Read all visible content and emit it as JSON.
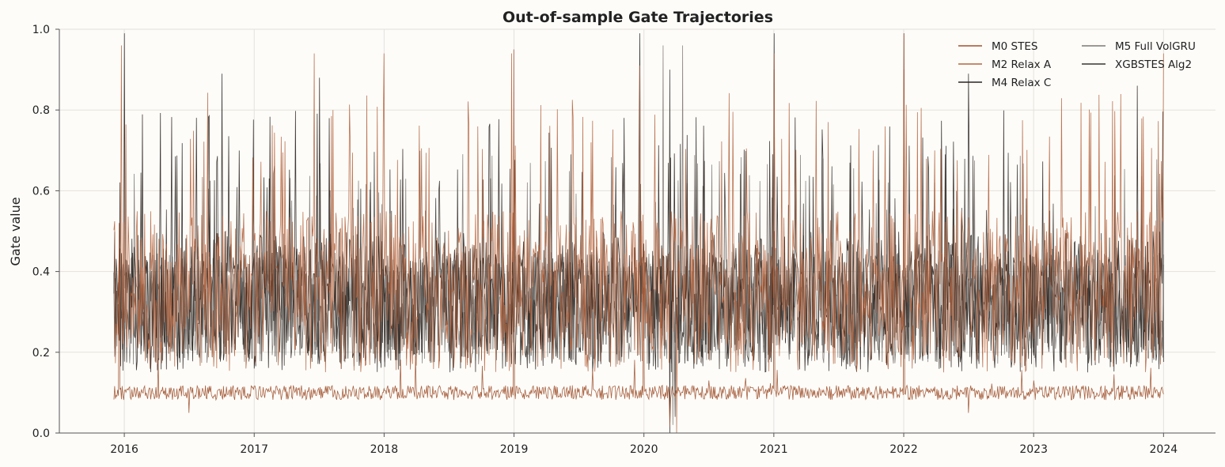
{
  "chart_data": {
    "type": "line",
    "title": "Out-of-sample Gate Trajectories",
    "xlabel": "",
    "ylabel": "Gate value",
    "xlim": [
      2015.5,
      2024.4
    ],
    "ylim": [
      0.0,
      1.0
    ],
    "x_ticks": [
      2016,
      2017,
      2018,
      2019,
      2020,
      2021,
      2022,
      2023,
      2024
    ],
    "x_tick_labels": [
      "2016",
      "2017",
      "2018",
      "2019",
      "2020",
      "2021",
      "2022",
      "2023",
      "2024"
    ],
    "y_ticks": [
      0.0,
      0.2,
      0.4,
      0.6,
      0.8,
      1.0
    ],
    "y_tick_labels": [
      "0.0",
      "0.2",
      "0.4",
      "0.6",
      "0.8",
      "1.0"
    ],
    "grid": true,
    "legend_position": "top-right",
    "x_start": 2015.92,
    "x_end": 2024.0,
    "n_points": 1400,
    "series": [
      {
        "name": "M0 STES",
        "color": "#a0522d",
        "regime": "baseline",
        "base": 0.1,
        "noise": 0.018,
        "envelope_points": [
          [
            2015.92,
            0.1
          ],
          [
            2024.0,
            0.1
          ]
        ],
        "spikes": [
          [
            2015.96,
            0.52
          ],
          [
            2016.5,
            0.05
          ],
          [
            2018.0,
            0.11
          ],
          [
            2019.0,
            0.95
          ],
          [
            2020.0,
            0.36
          ],
          [
            2020.2,
            0.015
          ],
          [
            2020.5,
            0.13
          ],
          [
            2021.0,
            0.5
          ],
          [
            2022.0,
            0.9
          ],
          [
            2022.5,
            0.05
          ],
          [
            2023.0,
            0.13
          ]
        ]
      },
      {
        "name": "M2 Relax A",
        "color": "#b5653f",
        "regime": "oscillating",
        "low": 0.15,
        "high": 0.55,
        "spike_peak": 0.85,
        "envelope_points": [
          [
            2015.92,
            0.45
          ],
          [
            2024.0,
            0.45
          ]
        ],
        "spikes": [
          [
            2015.98,
            0.96
          ],
          [
            2017.46,
            0.94
          ],
          [
            2018.0,
            0.94
          ],
          [
            2018.98,
            0.94
          ],
          [
            2019.97,
            0.91
          ],
          [
            2020.25,
            0.0
          ],
          [
            2021.0,
            0.94
          ],
          [
            2022.0,
            0.99
          ],
          [
            2024.0,
            0.94
          ]
        ]
      },
      {
        "name": "M4 Relax C",
        "color": "#2b2521",
        "regime": "oscillating",
        "low": 0.15,
        "high": 0.5,
        "spike_peak": 0.8,
        "envelope_points": [
          [
            2015.92,
            0.4
          ],
          [
            2024.0,
            0.4
          ]
        ],
        "spikes": [
          [
            2016.0,
            0.99
          ],
          [
            2016.75,
            0.89
          ],
          [
            2017.5,
            0.88
          ],
          [
            2019.97,
            0.99
          ],
          [
            2020.2,
            0.0
          ],
          [
            2021.0,
            0.99
          ],
          [
            2022.0,
            0.99
          ],
          [
            2022.5,
            0.89
          ],
          [
            2023.8,
            0.86
          ]
        ]
      },
      {
        "name": "M5 Full VolGRU",
        "color": "#7d7873",
        "regime": "oscillating",
        "low": 0.17,
        "high": 0.45,
        "spike_peak": 0.7,
        "envelope_points": [
          [
            2015.92,
            0.35
          ],
          [
            2024.0,
            0.35
          ]
        ],
        "spikes": [
          [
            2020.15,
            0.96
          ],
          [
            2020.22,
            0.02
          ],
          [
            2020.3,
            0.96
          ]
        ]
      },
      {
        "name": "XGBSTES Alg2",
        "color": "#3a3430",
        "regime": "oscillating",
        "low": 0.17,
        "high": 0.45,
        "spike_peak": 0.7,
        "envelope_points": [
          [
            2015.92,
            0.35
          ],
          [
            2024.0,
            0.35
          ]
        ],
        "spikes": [
          [
            2020.2,
            0.9
          ],
          [
            2020.24,
            0.04
          ],
          [
            2021.0,
            0.9
          ]
        ]
      }
    ]
  }
}
